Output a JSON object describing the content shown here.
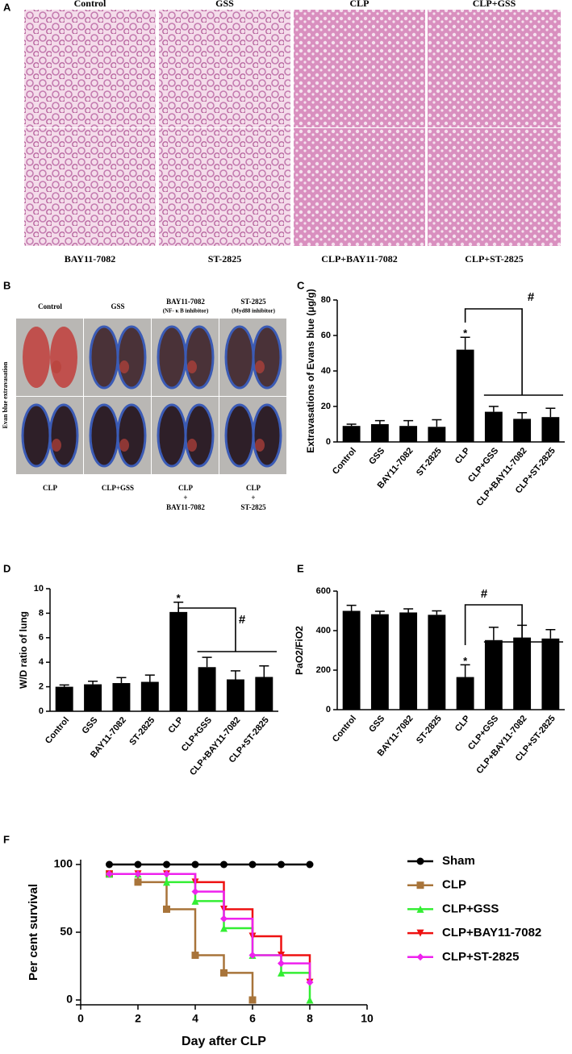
{
  "panel_a": {
    "label": "A",
    "top_labels": [
      "Control",
      "GSS",
      "CLP",
      "CLP+GSS"
    ],
    "bottom_labels": [
      "BAY11-7082",
      "ST-2825",
      "CLP+BAY11-7082",
      "CLP+ST-2825"
    ]
  },
  "panel_b": {
    "label": "B",
    "side_label": "Evan blue extravasation",
    "top_labels": [
      [
        "Control"
      ],
      [
        "GSS"
      ],
      [
        "BAY11-7082",
        "(NF- κ B inhibitor)"
      ],
      [
        "ST-2825",
        "(Myd88 inhibitor)"
      ]
    ],
    "bottom_labels": [
      [
        "CLP"
      ],
      [
        "CLP+GSS"
      ],
      [
        "CLP",
        "+",
        "BAY11-7082"
      ],
      [
        "CLP",
        "+",
        "ST-2825"
      ]
    ]
  },
  "chart_data": [
    {
      "type": "bar",
      "label": "C",
      "y_label": "Extravasations of Evans blue (μg/g)",
      "categories": [
        "Control",
        "GSS",
        "BAY11-7082",
        "ST-2825",
        "CLP",
        "CLP+GSS",
        "CLP+BAY11-7082",
        "CLP+ST-2825"
      ],
      "values": [
        9,
        10,
        9,
        8.5,
        52,
        17,
        13,
        14
      ],
      "errors": [
        1,
        2,
        3,
        4,
        7,
        3,
        3.5,
        5
      ],
      "color": "#000000",
      "ylim": [
        0,
        80
      ],
      "yticks": [
        0,
        20,
        40,
        60,
        80
      ],
      "annotations": [
        "*",
        "#"
      ]
    },
    {
      "type": "bar",
      "label": "D",
      "y_label": "W/D ratio of lung",
      "categories": [
        "Control",
        "GSS",
        "BAY11-7082",
        "ST-2825",
        "CLP",
        "CLP+GSS",
        "CLP+BAY11-7082",
        "CLP+ST-2825"
      ],
      "values": [
        2.0,
        2.2,
        2.3,
        2.4,
        8.1,
        3.6,
        2.6,
        2.8
      ],
      "errors": [
        0.15,
        0.25,
        0.45,
        0.55,
        0.8,
        0.8,
        0.7,
        0.9
      ],
      "color": "#000000",
      "ylim": [
        0,
        10
      ],
      "yticks": [
        0,
        2,
        4,
        6,
        8,
        10
      ],
      "annotations": [
        "*",
        "#"
      ]
    },
    {
      "type": "bar",
      "label": "E",
      "y_label": "PaO2/FiO2",
      "categories": [
        "Control",
        "GSS",
        "BAY11-7082",
        "ST-2825",
        "CLP",
        "CLP+GSS",
        "CLP+BAY11-7082",
        "CLP+ST-2825"
      ],
      "values": [
        500,
        483,
        492,
        480,
        165,
        352,
        365,
        360
      ],
      "errors": [
        28,
        15,
        18,
        20,
        62,
        65,
        62,
        45
      ],
      "color": "#000000",
      "ylim": [
        0,
        600
      ],
      "yticks": [
        0,
        200,
        400,
        600
      ],
      "annotations": [
        "*",
        "#"
      ]
    },
    {
      "type": "line",
      "label": "F",
      "x_label": "Day after CLP",
      "y_label": "Per cent survival",
      "x": [
        1,
        2,
        3,
        4,
        5,
        6,
        7,
        8
      ],
      "series": [
        {
          "name": "Sham",
          "color": "#000000",
          "marker": "circle",
          "values": [
            100,
            100,
            100,
            100,
            100,
            100,
            100,
            100
          ]
        },
        {
          "name": "CLP",
          "color": "#a8743a",
          "marker": "square",
          "values": [
            93,
            87,
            67,
            33,
            20,
            0,
            null,
            null
          ]
        },
        {
          "name": "CLP+GSS",
          "color": "#33ee33",
          "marker": "triangle-up",
          "values": [
            93,
            93,
            87,
            73,
            53,
            33,
            20,
            0
          ]
        },
        {
          "name": "CLP+BAY11-7082",
          "color": "#ee1111",
          "marker": "triangle-down",
          "values": [
            93,
            93,
            93,
            87,
            67,
            47,
            33,
            13
          ]
        },
        {
          "name": "CLP+ST-2825",
          "color": "#ee22ee",
          "marker": "diamond",
          "values": [
            93,
            93,
            93,
            80,
            60,
            33,
            27,
            13
          ]
        }
      ],
      "xlim": [
        0,
        10
      ],
      "xticks": [
        0,
        2,
        4,
        6,
        8,
        10
      ],
      "ylim": [
        0,
        100
      ],
      "yticks": [
        0,
        50,
        100
      ],
      "step": true
    }
  ]
}
